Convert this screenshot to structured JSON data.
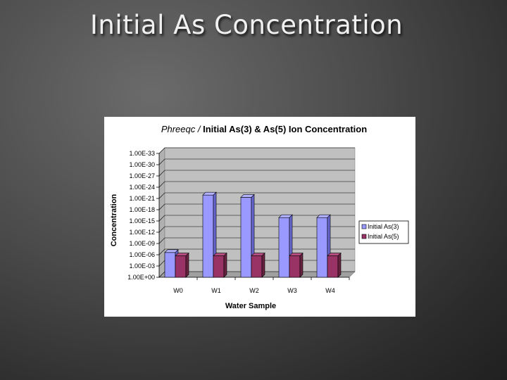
{
  "slide": {
    "title": "Initial As Concentration"
  },
  "chart_data": {
    "type": "bar",
    "title": {
      "italic": "Phreeqc / ",
      "rest": "Initial As(3) & As(5) Ion Concentration"
    },
    "xlabel": "Water Sample",
    "ylabel": "Concentration",
    "categories": [
      "W0",
      "W1",
      "W2",
      "W3",
      "W4"
    ],
    "y_ticks": [
      "1.00E+00",
      "1.00E-03",
      "1.00E-06",
      "1.00E-09",
      "1.00E-12",
      "1.00E-15",
      "1.00E-18",
      "1.00E-21",
      "1.00E-24",
      "1.00E-27",
      "1.00E-30",
      "1.00E-33"
    ],
    "ylim_steps": [
      0,
      11
    ],
    "series": [
      {
        "name": "Initial As(3)",
        "values_steps": [
          2.2,
          7.3,
          7.1,
          5.3,
          5.3
        ],
        "color": "#9999ff",
        "top": "#b3b3ff",
        "side": "#6666cc"
      },
      {
        "name": "Initial As(5)",
        "values_steps": [
          1.9,
          1.9,
          1.9,
          1.9,
          1.9
        ],
        "color": "#993366",
        "top": "#b34d80",
        "side": "#66223f"
      }
    ],
    "plot_area_color": "#c0c0c0",
    "grid": true,
    "legend_position": "right"
  }
}
